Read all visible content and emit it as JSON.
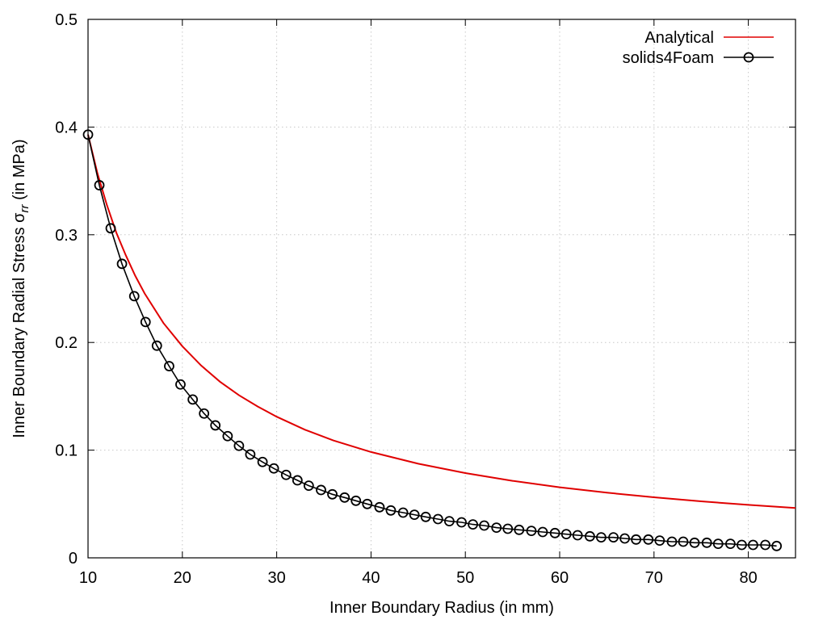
{
  "chart_data": {
    "type": "line",
    "title": "",
    "xlabel": "Inner Boundary Radius (in mm)",
    "ylabel": "Inner Boundary Radial Stress σ",
    "ylabel_subscript": "rr",
    "ylabel_suffix": " (in MPa)",
    "xlim": [
      10,
      85
    ],
    "ylim": [
      0,
      0.5
    ],
    "x_ticks": [
      "10",
      "20",
      "30",
      "40",
      "50",
      "60",
      "70",
      "80"
    ],
    "y_ticks": [
      "0",
      "0.1",
      "0.2",
      "0.3",
      "0.4",
      "0.5"
    ],
    "grid": true,
    "legend_position": "top-right",
    "series": [
      {
        "name": "Analytical",
        "color": "#e00000",
        "style": "line",
        "x": [
          10,
          11,
          12,
          13,
          14,
          15,
          16,
          18,
          20,
          22,
          24,
          26,
          28,
          30,
          33,
          36,
          40,
          45,
          50,
          55,
          60,
          65,
          70,
          75,
          80,
          85
        ],
        "y": [
          0.393,
          0.357,
          0.3275,
          0.302,
          0.281,
          0.262,
          0.2455,
          0.218,
          0.1965,
          0.1785,
          0.1635,
          0.151,
          0.1405,
          0.131,
          0.119,
          0.109,
          0.0983,
          0.0874,
          0.0787,
          0.0715,
          0.0655,
          0.0605,
          0.0562,
          0.0525,
          0.0492,
          0.0463
        ]
      },
      {
        "name": "solids4Foam",
        "color": "#000000",
        "style": "line-points",
        "marker": "open-circle",
        "x": [
          10.0,
          11.2,
          12.4,
          13.6,
          14.9,
          16.1,
          17.3,
          18.6,
          19.8,
          21.1,
          22.3,
          23.5,
          24.8,
          26.0,
          27.2,
          28.5,
          29.7,
          31.0,
          32.2,
          33.4,
          34.7,
          35.9,
          37.2,
          38.4,
          39.6,
          40.9,
          42.1,
          43.4,
          44.6,
          45.8,
          47.1,
          48.3,
          49.6,
          50.8,
          52.0,
          53.3,
          54.5,
          55.7,
          57.0,
          58.2,
          59.5,
          60.7,
          61.9,
          63.2,
          64.4,
          65.7,
          66.9,
          68.1,
          69.4,
          70.6,
          71.9,
          73.1,
          74.3,
          75.6,
          76.8,
          78.1,
          79.3,
          80.5,
          81.8,
          83.0
        ],
        "y": [
          0.393,
          0.346,
          0.306,
          0.273,
          0.243,
          0.219,
          0.197,
          0.178,
          0.161,
          0.147,
          0.134,
          0.123,
          0.113,
          0.104,
          0.096,
          0.089,
          0.083,
          0.077,
          0.072,
          0.067,
          0.063,
          0.059,
          0.056,
          0.053,
          0.05,
          0.047,
          0.044,
          0.042,
          0.04,
          0.038,
          0.036,
          0.034,
          0.033,
          0.031,
          0.03,
          0.028,
          0.027,
          0.026,
          0.025,
          0.024,
          0.023,
          0.022,
          0.021,
          0.02,
          0.019,
          0.019,
          0.018,
          0.017,
          0.017,
          0.016,
          0.015,
          0.015,
          0.014,
          0.014,
          0.013,
          0.013,
          0.012,
          0.012,
          0.012,
          0.011
        ]
      }
    ]
  }
}
